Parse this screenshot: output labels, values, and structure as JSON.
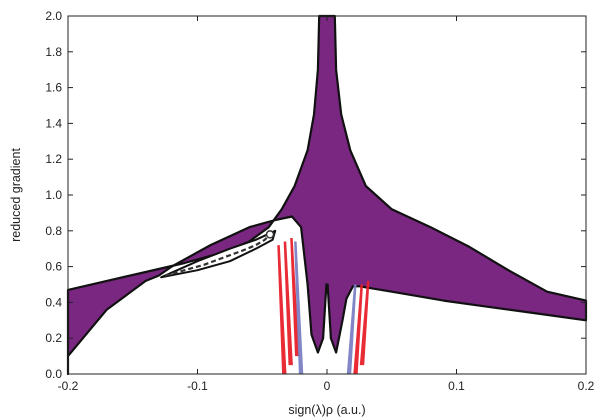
{
  "chart_data": {
    "type": "scatter",
    "title": "",
    "xlabel": "sign(λ)ρ (a.u.)",
    "ylabel": "reduced gradient",
    "xlim": [
      -0.2,
      0.2
    ],
    "ylim": [
      0.0,
      2.0
    ],
    "x_ticks": [
      "-0.2",
      "-0.1",
      "0",
      "0.1",
      "0.2"
    ],
    "x_tick_values": [
      -0.2,
      -0.1,
      0,
      0.1,
      0.2
    ],
    "y_ticks": [
      "0.0",
      "0.2",
      "0.4",
      "0.6",
      "0.8",
      "1.0",
      "1.2",
      "1.4",
      "1.6",
      "1.8",
      "2.0"
    ],
    "y_tick_values": [
      0.0,
      0.2,
      0.4,
      0.6,
      0.8,
      1.0,
      1.2,
      1.4,
      1.6,
      1.8,
      2.0
    ],
    "grid": false,
    "legend": "none",
    "colors": {
      "main_region": "#7a2782",
      "main_edge": "#111111",
      "spikes_red": "#e8202a",
      "spikes_blue": "#7b7fc4"
    },
    "regions": [
      {
        "role": "main",
        "points": [
          [
            -0.2,
            0.0
          ],
          [
            -0.2,
            0.47
          ],
          [
            -0.17,
            0.52
          ],
          [
            -0.14,
            0.57
          ],
          [
            -0.11,
            0.62
          ],
          [
            -0.08,
            0.68
          ],
          [
            -0.06,
            0.74
          ],
          [
            -0.045,
            0.82
          ],
          [
            -0.035,
            0.92
          ],
          [
            -0.025,
            1.05
          ],
          [
            -0.015,
            1.25
          ],
          [
            -0.01,
            1.45
          ],
          [
            -0.007,
            1.7
          ],
          [
            -0.006,
            2.0
          ],
          [
            0.006,
            2.0
          ],
          [
            0.007,
            1.7
          ],
          [
            0.011,
            1.45
          ],
          [
            0.018,
            1.25
          ],
          [
            0.03,
            1.05
          ],
          [
            0.05,
            0.92
          ],
          [
            0.08,
            0.82
          ],
          [
            0.11,
            0.71
          ],
          [
            0.14,
            0.58
          ],
          [
            0.17,
            0.46
          ],
          [
            0.2,
            0.41
          ],
          [
            0.2,
            0.3
          ],
          [
            0.17,
            0.33
          ],
          [
            0.13,
            0.37
          ],
          [
            0.09,
            0.41
          ],
          [
            0.05,
            0.46
          ],
          [
            0.025,
            0.49
          ],
          [
            0.02,
            0.49
          ],
          [
            0.015,
            0.42
          ],
          [
            0.012,
            0.3
          ],
          [
            0.007,
            0.12
          ],
          [
            0.003,
            0.2
          ],
          [
            0.0005,
            0.5
          ],
          [
            -0.0005,
            0.5
          ],
          [
            -0.003,
            0.2
          ],
          [
            -0.007,
            0.12
          ],
          [
            -0.012,
            0.22
          ],
          [
            -0.015,
            0.5
          ],
          [
            -0.02,
            0.82
          ],
          [
            -0.027,
            0.88
          ],
          [
            -0.04,
            0.86
          ],
          [
            -0.06,
            0.82
          ],
          [
            -0.09,
            0.72
          ],
          [
            -0.12,
            0.6
          ],
          [
            -0.13,
            0.55
          ],
          [
            -0.14,
            0.52
          ],
          [
            -0.155,
            0.44
          ],
          [
            -0.17,
            0.36
          ],
          [
            -0.2,
            0.1
          ]
        ]
      },
      {
        "role": "hole",
        "points": [
          [
            -0.04,
            0.8
          ],
          [
            -0.055,
            0.75
          ],
          [
            -0.075,
            0.7
          ],
          [
            -0.1,
            0.63
          ],
          [
            -0.128,
            0.54
          ],
          [
            -0.1,
            0.58
          ],
          [
            -0.075,
            0.63
          ],
          [
            -0.055,
            0.7
          ],
          [
            -0.042,
            0.75
          ]
        ]
      }
    ],
    "spikes": [
      {
        "series": "red",
        "x": -0.033,
        "ymin": 0.0,
        "ymax": 0.72
      },
      {
        "series": "red",
        "x": -0.028,
        "ymin": 0.05,
        "ymax": 0.74
      },
      {
        "series": "red",
        "x": -0.023,
        "ymin": 0.1,
        "ymax": 0.76
      },
      {
        "series": "red",
        "x": 0.022,
        "ymin": 0.0,
        "ymax": 0.5
      },
      {
        "series": "red",
        "x": 0.027,
        "ymin": 0.05,
        "ymax": 0.52
      },
      {
        "series": "blue",
        "x": -0.02,
        "ymin": 0.0,
        "ymax": 0.74
      },
      {
        "series": "blue",
        "x": 0.017,
        "ymin": 0.0,
        "ymax": 0.5
      }
    ],
    "scatter_line": {
      "series": "dashed",
      "points": [
        [
          -0.125,
          0.55
        ],
        [
          -0.11,
          0.58
        ],
        [
          -0.095,
          0.61
        ],
        [
          -0.08,
          0.65
        ],
        [
          -0.065,
          0.69
        ],
        [
          -0.055,
          0.72
        ],
        [
          -0.048,
          0.75
        ],
        [
          -0.044,
          0.78
        ]
      ]
    }
  }
}
